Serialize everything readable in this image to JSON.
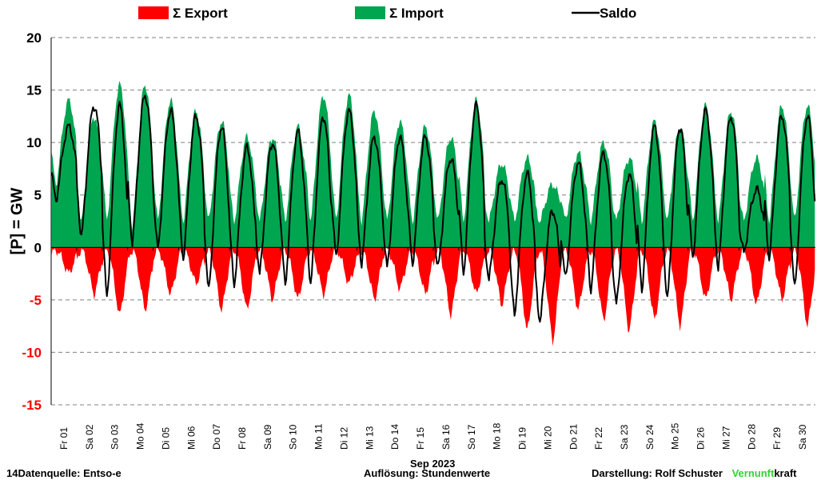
{
  "legend": {
    "export_label": "Σ Export",
    "import_label": "Σ Import",
    "saldo_label": "Saldo"
  },
  "axis": {
    "ylabel": "[P]  = GW",
    "xlabel": "Sep 2023"
  },
  "footer": {
    "source": "14Datenquelle: Entso-e",
    "resolution": "Auflösung: Stundenwerte",
    "credit_prefix": "Darstellung:  Rolf Schuster",
    "brand_green": "Vernunft",
    "brand_black": "kraft"
  },
  "colors": {
    "export": "#ff0000",
    "import": "#00a550",
    "saldo": "#000000",
    "grid": "#808080",
    "negative_tick": "#ff0000",
    "brand": "#2fd42f"
  },
  "chart_data": {
    "type": "area",
    "ylim": [
      -15,
      20
    ],
    "yticks": [
      -15,
      -10,
      -5,
      0,
      5,
      10,
      15,
      20
    ],
    "grid": true,
    "legend_position": "top",
    "categories": [
      "Fr 01",
      "Sa 02",
      "So 03",
      "Mo 04",
      "Di 05",
      "Mi 06",
      "Do 07",
      "Fr 08",
      "Sa 09",
      "So 10",
      "Mo 11",
      "Di 12",
      "Mi 13",
      "Do 14",
      "Fr 15",
      "Sa 16",
      "So 17",
      "Mo 18",
      "Di 19",
      "Mi 20",
      "Do 21",
      "Fr 22",
      "Sa 23",
      "So 24",
      "Mo 25",
      "Di 26",
      "Mi 27",
      "Do 28",
      "Fr 29",
      "Sa 30"
    ],
    "series": [
      {
        "name": "Σ Export",
        "color": "#ff0000",
        "daily_min": [
          -2.5,
          -4.5,
          -6.5,
          -6.0,
          -4.5,
          -3.5,
          -6.0,
          -6.0,
          -5.0,
          -5.0,
          -4.5,
          -3.5,
          -5.0,
          -4.0,
          -4.5,
          -6.5,
          -4.5,
          -5.5,
          -8.0,
          -9.0,
          -6.0,
          -7.0,
          -8.0,
          -7.0,
          -7.5,
          -5.0,
          -5.0,
          -5.5,
          -5.0,
          -7.5
        ]
      },
      {
        "name": "Σ Import",
        "color": "#00a550",
        "daily_max": [
          14.0,
          12.5,
          15.5,
          15.5,
          14.0,
          13.0,
          12.0,
          10.5,
          10.5,
          11.5,
          14.5,
          14.5,
          13.0,
          12.0,
          11.5,
          10.5,
          14.0,
          8.0,
          8.5,
          6.0,
          9.0,
          10.0,
          8.5,
          12.0,
          11.5,
          13.5,
          13.0,
          8.5,
          13.5,
          13.5
        ]
      },
      {
        "name": "Saldo",
        "color": "#000000",
        "daily_min": [
          4.5,
          1.0,
          -4.8,
          0.5,
          -0.2,
          -1.0,
          -4.2,
          -3.5,
          -2.5,
          -3.5,
          -3.5,
          -1.0,
          -1.5,
          -2.0,
          -1.5,
          -2.0,
          -2.5,
          -3.0,
          -6.5,
          -7.0,
          -3.0,
          -4.0,
          -5.5,
          -4.0,
          -5.0,
          -1.0,
          -2.0,
          -0.5,
          -1.0,
          -4.0
        ],
        "daily_max": [
          11.5,
          13.5,
          13.5,
          14.5,
          13.0,
          12.5,
          11.5,
          9.5,
          10.0,
          11.0,
          12.5,
          13.0,
          10.5,
          10.5,
          10.5,
          8.5,
          13.5,
          6.5,
          7.0,
          3.5,
          8.0,
          9.0,
          7.0,
          11.5,
          11.5,
          13.0,
          12.5,
          5.5,
          12.5,
          12.5
        ]
      }
    ]
  }
}
